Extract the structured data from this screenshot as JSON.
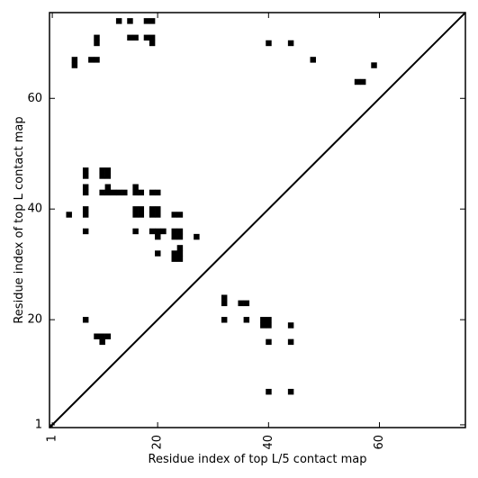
{
  "chart_data": {
    "type": "heatmap",
    "title": "",
    "xlabel": "Residue index of top L/5 contact map",
    "ylabel": "Residue index of top L contact map",
    "xlim": [
      0.5,
      75.5
    ],
    "ylim": [
      0.5,
      75.5
    ],
    "xticks": [
      1,
      20,
      40,
      60
    ],
    "yticks": [
      1,
      20,
      40,
      60
    ],
    "diagonal": true,
    "grid": false,
    "contacts_upper_left": [
      [
        13,
        74
      ],
      [
        15,
        74
      ],
      [
        18,
        74
      ],
      [
        19,
        74
      ],
      [
        9,
        71
      ],
      [
        9,
        70
      ],
      [
        15,
        71
      ],
      [
        16,
        71
      ],
      [
        18,
        71
      ],
      [
        19,
        71
      ],
      [
        19,
        70
      ],
      [
        5,
        67
      ],
      [
        5,
        66
      ],
      [
        8,
        67
      ],
      [
        9,
        67
      ],
      [
        40,
        70
      ],
      [
        44,
        70
      ],
      [
        48,
        67
      ],
      [
        59,
        66
      ],
      [
        56,
        63
      ],
      [
        57,
        63
      ],
      [
        7,
        47
      ],
      [
        7,
        46
      ],
      [
        10,
        47
      ],
      [
        11,
        47
      ],
      [
        10,
        46
      ],
      [
        11,
        46
      ],
      [
        7,
        44
      ],
      [
        7,
        43
      ],
      [
        16,
        44
      ],
      [
        11,
        44
      ],
      [
        10,
        43
      ],
      [
        11,
        43
      ],
      [
        12,
        43
      ],
      [
        13,
        43
      ],
      [
        14,
        43
      ],
      [
        16,
        43
      ],
      [
        17,
        43
      ],
      [
        19,
        43
      ],
      [
        20,
        43
      ],
      [
        4,
        39
      ],
      [
        7,
        40
      ],
      [
        7,
        39
      ],
      [
        16,
        40
      ],
      [
        17,
        40
      ],
      [
        16,
        39
      ],
      [
        17,
        39
      ],
      [
        19,
        40
      ],
      [
        20,
        40
      ],
      [
        19,
        39
      ],
      [
        20,
        39
      ],
      [
        23,
        39
      ],
      [
        24,
        39
      ],
      [
        7,
        36
      ],
      [
        16,
        36
      ],
      [
        19,
        36
      ],
      [
        20,
        36
      ],
      [
        21,
        36
      ],
      [
        20,
        35
      ],
      [
        23,
        36
      ],
      [
        24,
        36
      ],
      [
        23,
        35
      ],
      [
        24,
        35
      ],
      [
        27,
        35
      ],
      [
        24,
        33
      ],
      [
        20,
        32
      ],
      [
        23,
        32
      ],
      [
        24,
        32
      ],
      [
        23,
        31
      ],
      [
        24,
        31
      ]
    ],
    "contacts_lower_right": [
      [
        32,
        24
      ],
      [
        32,
        23
      ],
      [
        35,
        23
      ],
      [
        36,
        23
      ],
      [
        7,
        20
      ],
      [
        32,
        20
      ],
      [
        36,
        20
      ],
      [
        39,
        20
      ],
      [
        40,
        20
      ],
      [
        39,
        19
      ],
      [
        40,
        19
      ],
      [
        44,
        19
      ],
      [
        9,
        17
      ],
      [
        10,
        17
      ],
      [
        11,
        17
      ],
      [
        10,
        16
      ],
      [
        40,
        16
      ],
      [
        44,
        16
      ],
      [
        40,
        7
      ],
      [
        44,
        7
      ]
    ]
  }
}
